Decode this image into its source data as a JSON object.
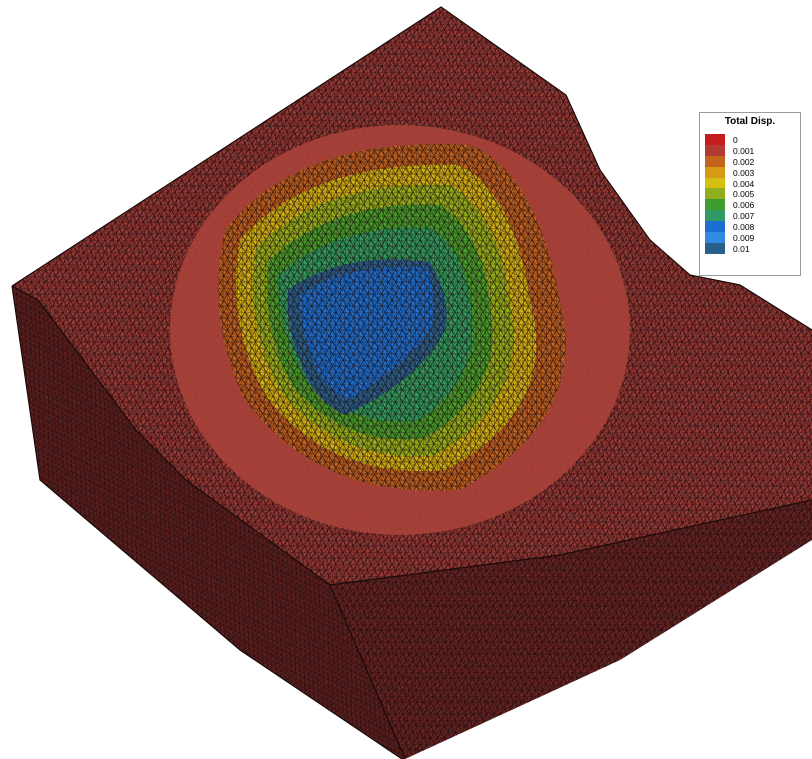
{
  "legend": {
    "title": "Total Disp.",
    "levels": [
      {
        "label": "0",
        "color": "#c61c1c"
      },
      {
        "label": "0.001",
        "color": "#b23a32"
      },
      {
        "label": "0.002",
        "color": "#c2641e"
      },
      {
        "label": "0.003",
        "color": "#d79a16"
      },
      {
        "label": "0.004",
        "color": "#d4c010"
      },
      {
        "label": "0.005",
        "color": "#8fb01c"
      },
      {
        "label": "0.006",
        "color": "#3f9c2e"
      },
      {
        "label": "0.007",
        "color": "#2f9a64"
      },
      {
        "label": "0.008",
        "color": "#1c6fd2"
      },
      {
        "label": "0.009",
        "color": "#2f8ae0"
      },
      {
        "label": "0.01",
        "color": "#2a5f8c"
      }
    ]
  },
  "colors": {
    "mesh_face": "#9a3a36",
    "mesh_side": "#5a1c1c",
    "mesh_lines": "#1a0a0a"
  }
}
